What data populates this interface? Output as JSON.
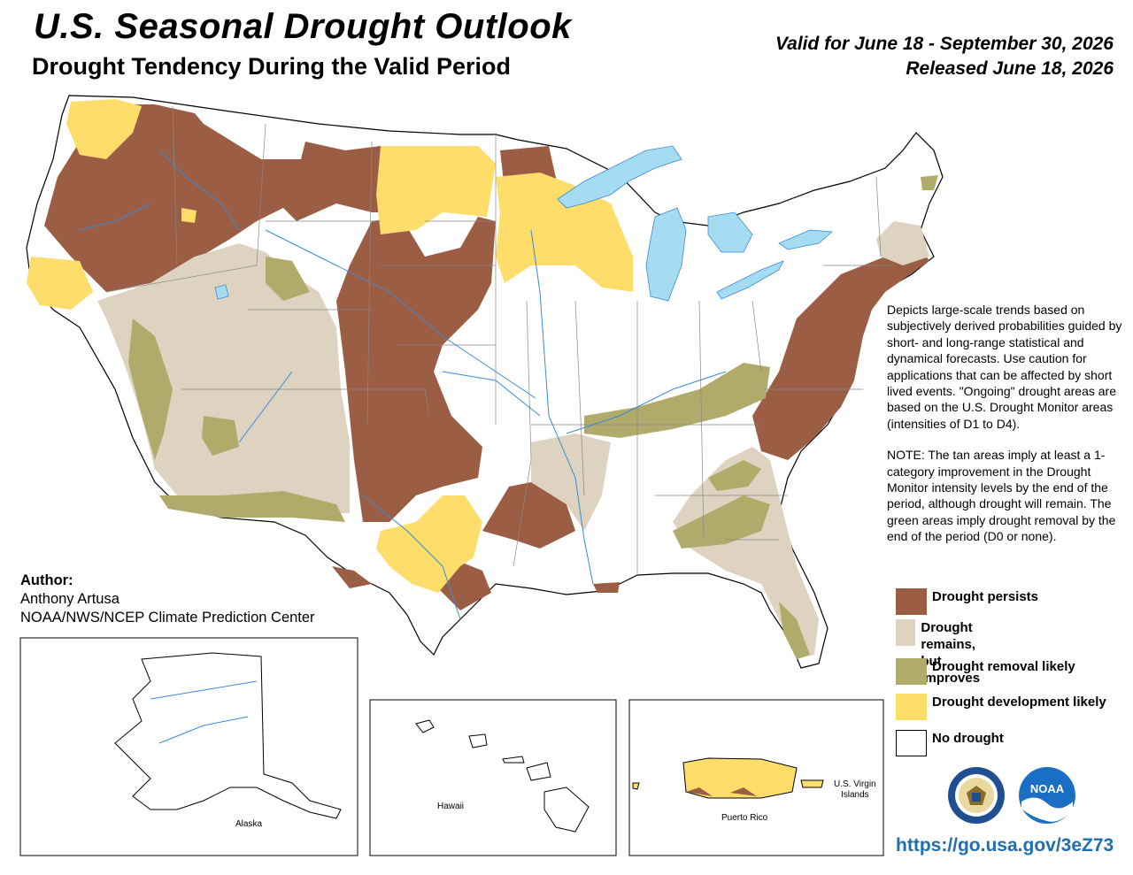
{
  "header": {
    "title": "U.S. Seasonal Drought Outlook",
    "subtitle": "Drought Tendency During the Valid Period",
    "valid_period": "Valid for June 18 - September 30, 2026",
    "released": "Released June 18, 2026"
  },
  "description": {
    "para1": "Depicts large-scale trends based on subjectively derived probabilities guided by short- and long-range statistical and dynamical forecasts. Use caution for applications that can be affected by short lived events. \"Ongoing\" drought areas are based on the U.S. Drought Monitor areas (intensities of D1 to D4).",
    "para2": "NOTE: The tan areas imply at least a 1-category improvement in the Drought Monitor intensity levels by the end of the period, although drought will remain. The green areas imply drought removal by the end of the period (D0 or none)."
  },
  "legend": [
    {
      "label": "Drought persists",
      "color": "#9c5d45"
    },
    {
      "label": "Drought remains,\nbut improves",
      "color": "#ddd3c0"
    },
    {
      "label": "Drought removal likely",
      "color": "#b1ab6b"
    },
    {
      "label": "Drought development likely",
      "color": "#fedd6a"
    },
    {
      "label": "No drought",
      "color": "#ffffff"
    }
  ],
  "author": {
    "label": "Author:",
    "name": "Anthony Artusa",
    "org": "NOAA/NWS/NCEP Climate Prediction Center"
  },
  "insets": {
    "alaska": "Alaska",
    "hawaii": "Hawaii",
    "puerto_rico": "Puerto Rico",
    "usvi_line1": "U.S. Virgin",
    "usvi_line2": "Islands"
  },
  "colors": {
    "water": "#a6dcf2",
    "river": "#3b8ad6",
    "border": "#000000",
    "state_line": "#888888"
  },
  "logos": {
    "commerce_seal": "dept-of-commerce-seal",
    "noaa": "NOAA",
    "noaa_logo": "noaa-logo"
  },
  "url": "https://go.usa.gov/3eZ73"
}
